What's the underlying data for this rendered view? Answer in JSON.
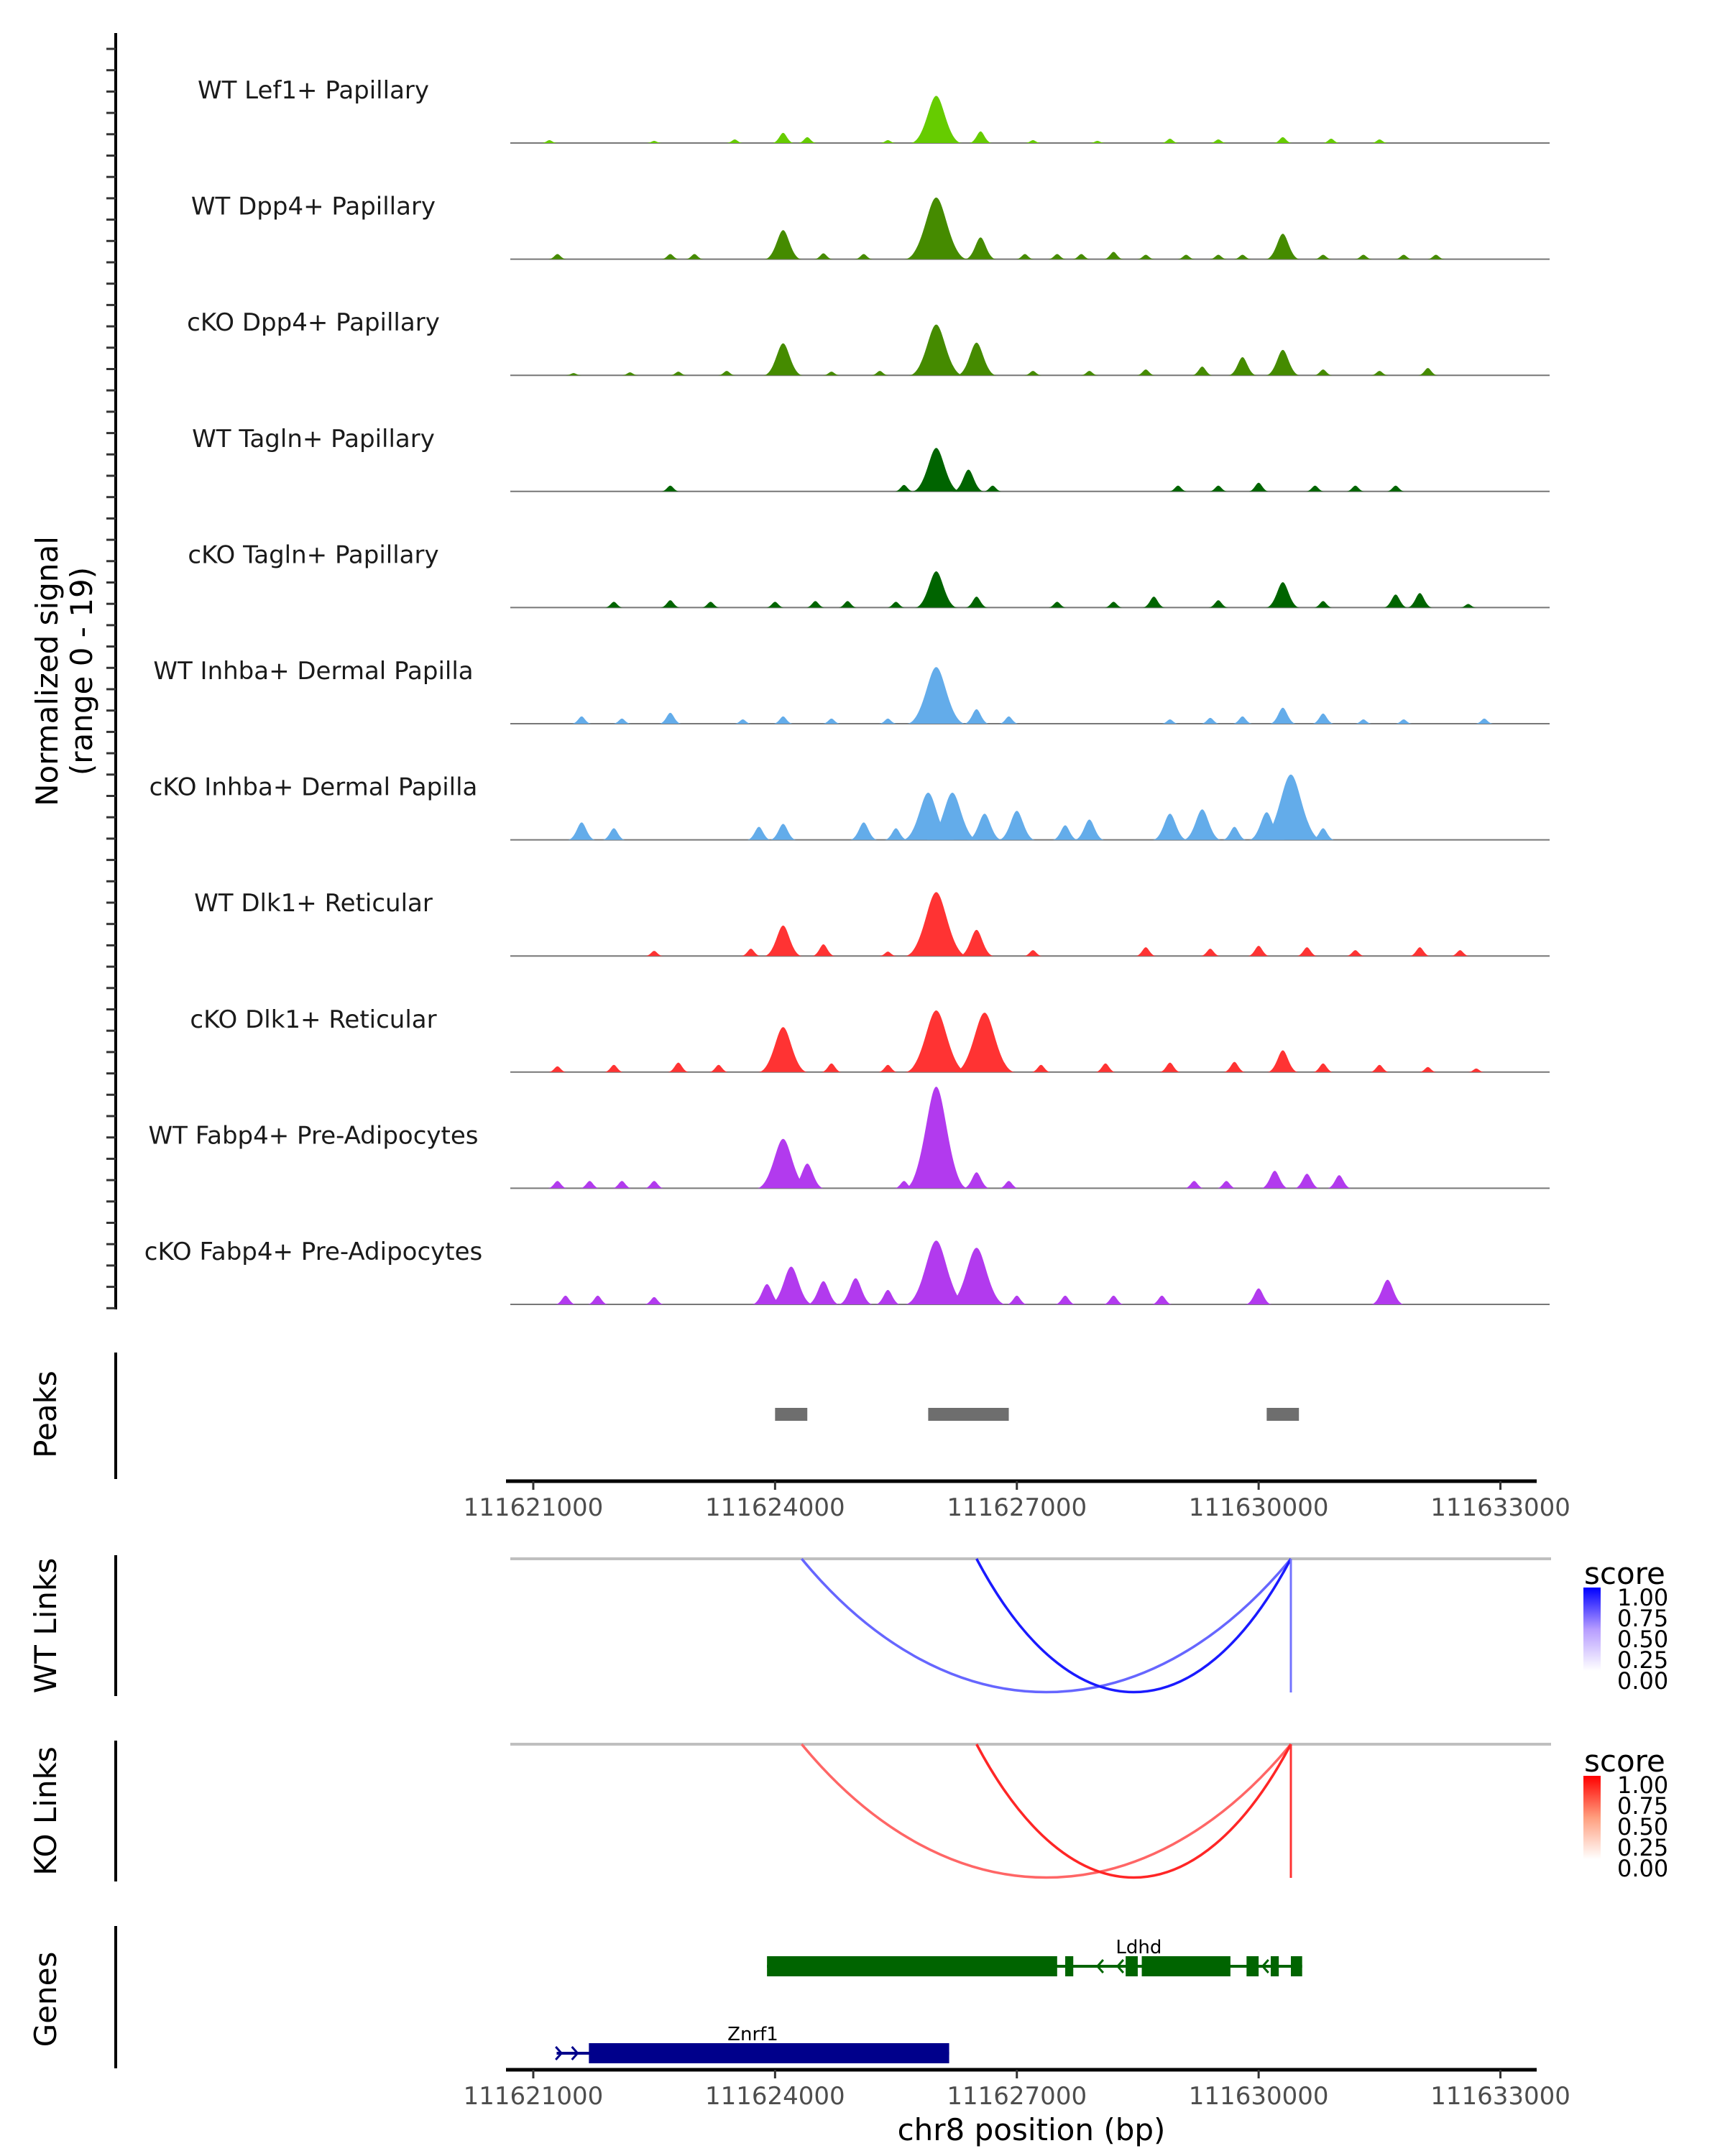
{
  "chart_data": {
    "type": "area",
    "title": "",
    "region": {
      "chrom": "chr8",
      "start": 111620715,
      "end": 111633450
    },
    "xlabel": "chr8 position (bp)",
    "xticks": [
      111621000,
      111624000,
      111627000,
      111630000,
      111633000
    ],
    "xtick_labels": [
      "111621000",
      "111624000",
      "111627000",
      "111630000",
      "111633000"
    ],
    "signal_ylabel_line1": "Normalized signal",
    "signal_ylabel_line2": "(range 0 - 19)",
    "signal_range": [
      0,
      19
    ],
    "tracks": [
      {
        "name": "WT Lef1+ Papillary",
        "color": "#66CC00",
        "peaks": [
          [
            111621200,
            0.4
          ],
          [
            111622500,
            0.3
          ],
          [
            111623500,
            0.5
          ],
          [
            111624100,
            1.4
          ],
          [
            111624400,
            0.8
          ],
          [
            111625400,
            0.4
          ],
          [
            111626000,
            6.5
          ],
          [
            111626550,
            1.6
          ],
          [
            111627200,
            0.4
          ],
          [
            111628000,
            0.3
          ],
          [
            111628900,
            0.6
          ],
          [
            111629500,
            0.5
          ],
          [
            111630300,
            0.8
          ],
          [
            111630900,
            0.6
          ],
          [
            111631500,
            0.5
          ]
        ]
      },
      {
        "name": "WT Dpp4+ Papillary",
        "color": "#458B00",
        "peaks": [
          [
            111621300,
            0.7
          ],
          [
            111622700,
            0.7
          ],
          [
            111623000,
            0.7
          ],
          [
            111624100,
            4.0
          ],
          [
            111624600,
            0.8
          ],
          [
            111625100,
            0.7
          ],
          [
            111626000,
            8.5
          ],
          [
            111626550,
            3.0
          ],
          [
            111627100,
            0.7
          ],
          [
            111627500,
            0.7
          ],
          [
            111627800,
            0.7
          ],
          [
            111628200,
            1.0
          ],
          [
            111628600,
            0.6
          ],
          [
            111629100,
            0.6
          ],
          [
            111629500,
            0.6
          ],
          [
            111629800,
            0.6
          ],
          [
            111630300,
            3.5
          ],
          [
            111630800,
            0.6
          ],
          [
            111631300,
            0.6
          ],
          [
            111631800,
            0.6
          ],
          [
            111632200,
            0.6
          ]
        ]
      },
      {
        "name": "cKO Dpp4+ Papillary",
        "color": "#458B00",
        "peaks": [
          [
            111621500,
            0.3
          ],
          [
            111622200,
            0.4
          ],
          [
            111622800,
            0.5
          ],
          [
            111623400,
            0.6
          ],
          [
            111624100,
            4.4
          ],
          [
            111624700,
            0.5
          ],
          [
            111625300,
            0.6
          ],
          [
            111626000,
            7.0
          ],
          [
            111626500,
            4.5
          ],
          [
            111627200,
            0.6
          ],
          [
            111627900,
            0.6
          ],
          [
            111628600,
            0.8
          ],
          [
            111629300,
            1.2
          ],
          [
            111629800,
            2.5
          ],
          [
            111630300,
            3.5
          ],
          [
            111630800,
            0.8
          ],
          [
            111631500,
            0.6
          ],
          [
            111632100,
            1.0
          ]
        ]
      },
      {
        "name": "WT Tagln+ Papillary",
        "color": "#006400",
        "peaks": [
          [
            111622700,
            0.8
          ],
          [
            111625600,
            0.9
          ],
          [
            111626000,
            6.0
          ],
          [
            111626400,
            3.0
          ],
          [
            111626700,
            0.8
          ],
          [
            111629000,
            0.8
          ],
          [
            111629500,
            0.8
          ],
          [
            111630000,
            1.2
          ],
          [
            111630700,
            0.8
          ],
          [
            111631200,
            0.8
          ],
          [
            111631700,
            0.8
          ]
        ]
      },
      {
        "name": "cKO Tagln+ Papillary",
        "color": "#006400",
        "peaks": [
          [
            111622000,
            0.8
          ],
          [
            111622700,
            1.0
          ],
          [
            111623200,
            0.8
          ],
          [
            111624000,
            0.8
          ],
          [
            111624500,
            0.9
          ],
          [
            111624900,
            0.9
          ],
          [
            111625500,
            0.8
          ],
          [
            111626000,
            5.0
          ],
          [
            111626500,
            1.5
          ],
          [
            111627500,
            0.8
          ],
          [
            111628200,
            0.8
          ],
          [
            111628700,
            1.5
          ],
          [
            111629500,
            1.0
          ],
          [
            111630300,
            3.5
          ],
          [
            111630800,
            0.9
          ],
          [
            111631700,
            1.8
          ],
          [
            111632000,
            2.0
          ],
          [
            111632600,
            0.5
          ]
        ]
      },
      {
        "name": "WT Inhba+ Dermal Papilla",
        "color": "#63ACEA",
        "peaks": [
          [
            111621600,
            1.0
          ],
          [
            111622100,
            0.7
          ],
          [
            111622700,
            1.5
          ],
          [
            111623600,
            0.6
          ],
          [
            111624100,
            1.0
          ],
          [
            111624700,
            0.7
          ],
          [
            111625400,
            0.7
          ],
          [
            111626000,
            7.8
          ],
          [
            111626500,
            2.0
          ],
          [
            111626900,
            1.0
          ],
          [
            111628900,
            0.6
          ],
          [
            111629400,
            0.8
          ],
          [
            111629800,
            1.0
          ],
          [
            111630300,
            2.2
          ],
          [
            111630800,
            1.4
          ],
          [
            111631300,
            0.6
          ],
          [
            111631800,
            0.6
          ],
          [
            111632800,
            0.7
          ]
        ]
      },
      {
        "name": "cKO Inhba+ Dermal Papilla",
        "color": "#63ACEA",
        "peaks": [
          [
            111621600,
            2.4
          ],
          [
            111622000,
            1.6
          ],
          [
            111623800,
            1.8
          ],
          [
            111624100,
            2.2
          ],
          [
            111625100,
            2.4
          ],
          [
            111625500,
            1.6
          ],
          [
            111625900,
            6.5
          ],
          [
            111626200,
            6.5
          ],
          [
            111626600,
            3.6
          ],
          [
            111627000,
            4.0
          ],
          [
            111627600,
            2.0
          ],
          [
            111627900,
            2.8
          ],
          [
            111628900,
            3.6
          ],
          [
            111629300,
            4.2
          ],
          [
            111629700,
            1.8
          ],
          [
            111630100,
            3.8
          ],
          [
            111630400,
            9.0
          ],
          [
            111630800,
            1.6
          ]
        ]
      },
      {
        "name": "WT Dlk1+ Reticular",
        "color": "#FF3333",
        "peaks": [
          [
            111622500,
            0.7
          ],
          [
            111623700,
            1.0
          ],
          [
            111624100,
            4.2
          ],
          [
            111624600,
            1.6
          ],
          [
            111625400,
            0.6
          ],
          [
            111626000,
            8.8
          ],
          [
            111626500,
            3.6
          ],
          [
            111627200,
            0.8
          ],
          [
            111628600,
            1.2
          ],
          [
            111629400,
            1.0
          ],
          [
            111630000,
            1.4
          ],
          [
            111630600,
            1.2
          ],
          [
            111631200,
            0.8
          ],
          [
            111632000,
            1.2
          ],
          [
            111632500,
            0.8
          ]
        ]
      },
      {
        "name": "cKO Dlk1+ Reticular",
        "color": "#FF3333",
        "peaks": [
          [
            111621300,
            0.8
          ],
          [
            111622000,
            1.0
          ],
          [
            111622800,
            1.3
          ],
          [
            111623300,
            1.0
          ],
          [
            111624100,
            6.2
          ],
          [
            111624700,
            1.2
          ],
          [
            111625400,
            1.0
          ],
          [
            111626000,
            8.5
          ],
          [
            111626600,
            8.2
          ],
          [
            111627300,
            1.0
          ],
          [
            111628100,
            1.2
          ],
          [
            111628900,
            1.3
          ],
          [
            111629700,
            1.4
          ],
          [
            111630300,
            3.0
          ],
          [
            111630800,
            1.2
          ],
          [
            111631500,
            1.0
          ],
          [
            111632100,
            0.7
          ],
          [
            111632700,
            0.5
          ]
        ]
      },
      {
        "name": "WT Fabp4+ Pre-Adipocytes",
        "color": "#B23AEE",
        "peaks": [
          [
            111621300,
            1.0
          ],
          [
            111621700,
            1.0
          ],
          [
            111622100,
            1.0
          ],
          [
            111622500,
            1.0
          ],
          [
            111624100,
            6.8
          ],
          [
            111624400,
            3.4
          ],
          [
            111625600,
            1.0
          ],
          [
            111626000,
            14.0
          ],
          [
            111626500,
            2.2
          ],
          [
            111626900,
            1.0
          ],
          [
            111629200,
            1.0
          ],
          [
            111629600,
            1.0
          ],
          [
            111630200,
            2.4
          ],
          [
            111630600,
            2.0
          ],
          [
            111631000,
            1.8
          ]
        ]
      },
      {
        "name": "cKO Fabp4+ Pre-Adipocytes",
        "color": "#B23AEE",
        "peaks": [
          [
            111621400,
            1.2
          ],
          [
            111621800,
            1.2
          ],
          [
            111622500,
            1.0
          ],
          [
            111623900,
            2.8
          ],
          [
            111624200,
            5.2
          ],
          [
            111624600,
            3.2
          ],
          [
            111625000,
            3.6
          ],
          [
            111625400,
            2.0
          ],
          [
            111625800,
            2.2
          ],
          [
            111626000,
            8.8
          ],
          [
            111626500,
            7.8
          ],
          [
            111627000,
            1.2
          ],
          [
            111627600,
            1.2
          ],
          [
            111628200,
            1.2
          ],
          [
            111628800,
            1.2
          ],
          [
            111630000,
            2.2
          ],
          [
            111631600,
            3.4
          ]
        ]
      }
    ],
    "peaks_track": {
      "label": "Peaks",
      "color": "#6E6E6E",
      "regions": [
        [
          111624000,
          111624400
        ],
        [
          111625900,
          111626900
        ],
        [
          111630100,
          111630500
        ]
      ]
    },
    "links": [
      {
        "label": "WT Links",
        "legend_title": "score",
        "color_low": "#FFFFFF",
        "color_high": "#0000FF",
        "legend_ticks": [
          "1.00",
          "0.75",
          "0.50",
          "0.25",
          "0.00"
        ],
        "links": [
          {
            "start": 111624330,
            "end": 111630400,
            "score": 0.35
          },
          {
            "start": 111626500,
            "end": 111630400,
            "score": 0.65
          },
          {
            "start": 111630400,
            "end": 111630400,
            "score": 0.3
          }
        ]
      },
      {
        "label": "KO Links",
        "legend_title": "score",
        "color_low": "#FFFFFF",
        "color_high": "#FF0000",
        "legend_ticks": [
          "1.00",
          "0.75",
          "0.50",
          "0.25",
          "0.00"
        ],
        "links": [
          {
            "start": 111624330,
            "end": 111630400,
            "score": 0.35
          },
          {
            "start": 111626500,
            "end": 111630400,
            "score": 0.6
          },
          {
            "start": 111630400,
            "end": 111630400,
            "score": 0.55
          }
        ]
      }
    ],
    "genes_track": {
      "label": "Genes",
      "genes": [
        {
          "name": "Ldhd",
          "start": 111623900,
          "end": 111630540,
          "strand": "-",
          "color": "#006400",
          "exons": [
            [
              111623900,
              111627500
            ],
            [
              111627600,
              111627700
            ],
            [
              111628350,
              111628500
            ],
            [
              111628550,
              111629650
            ],
            [
              111629850,
              111630000
            ],
            [
              111630150,
              111630250
            ],
            [
              111630400,
              111630540
            ]
          ]
        },
        {
          "name": "Znrf1",
          "start": 111621290,
          "end": 111626160,
          "strand": "+",
          "color": "#00008B",
          "exons": [
            [
              111621690,
              111626160
            ]
          ]
        }
      ]
    }
  }
}
